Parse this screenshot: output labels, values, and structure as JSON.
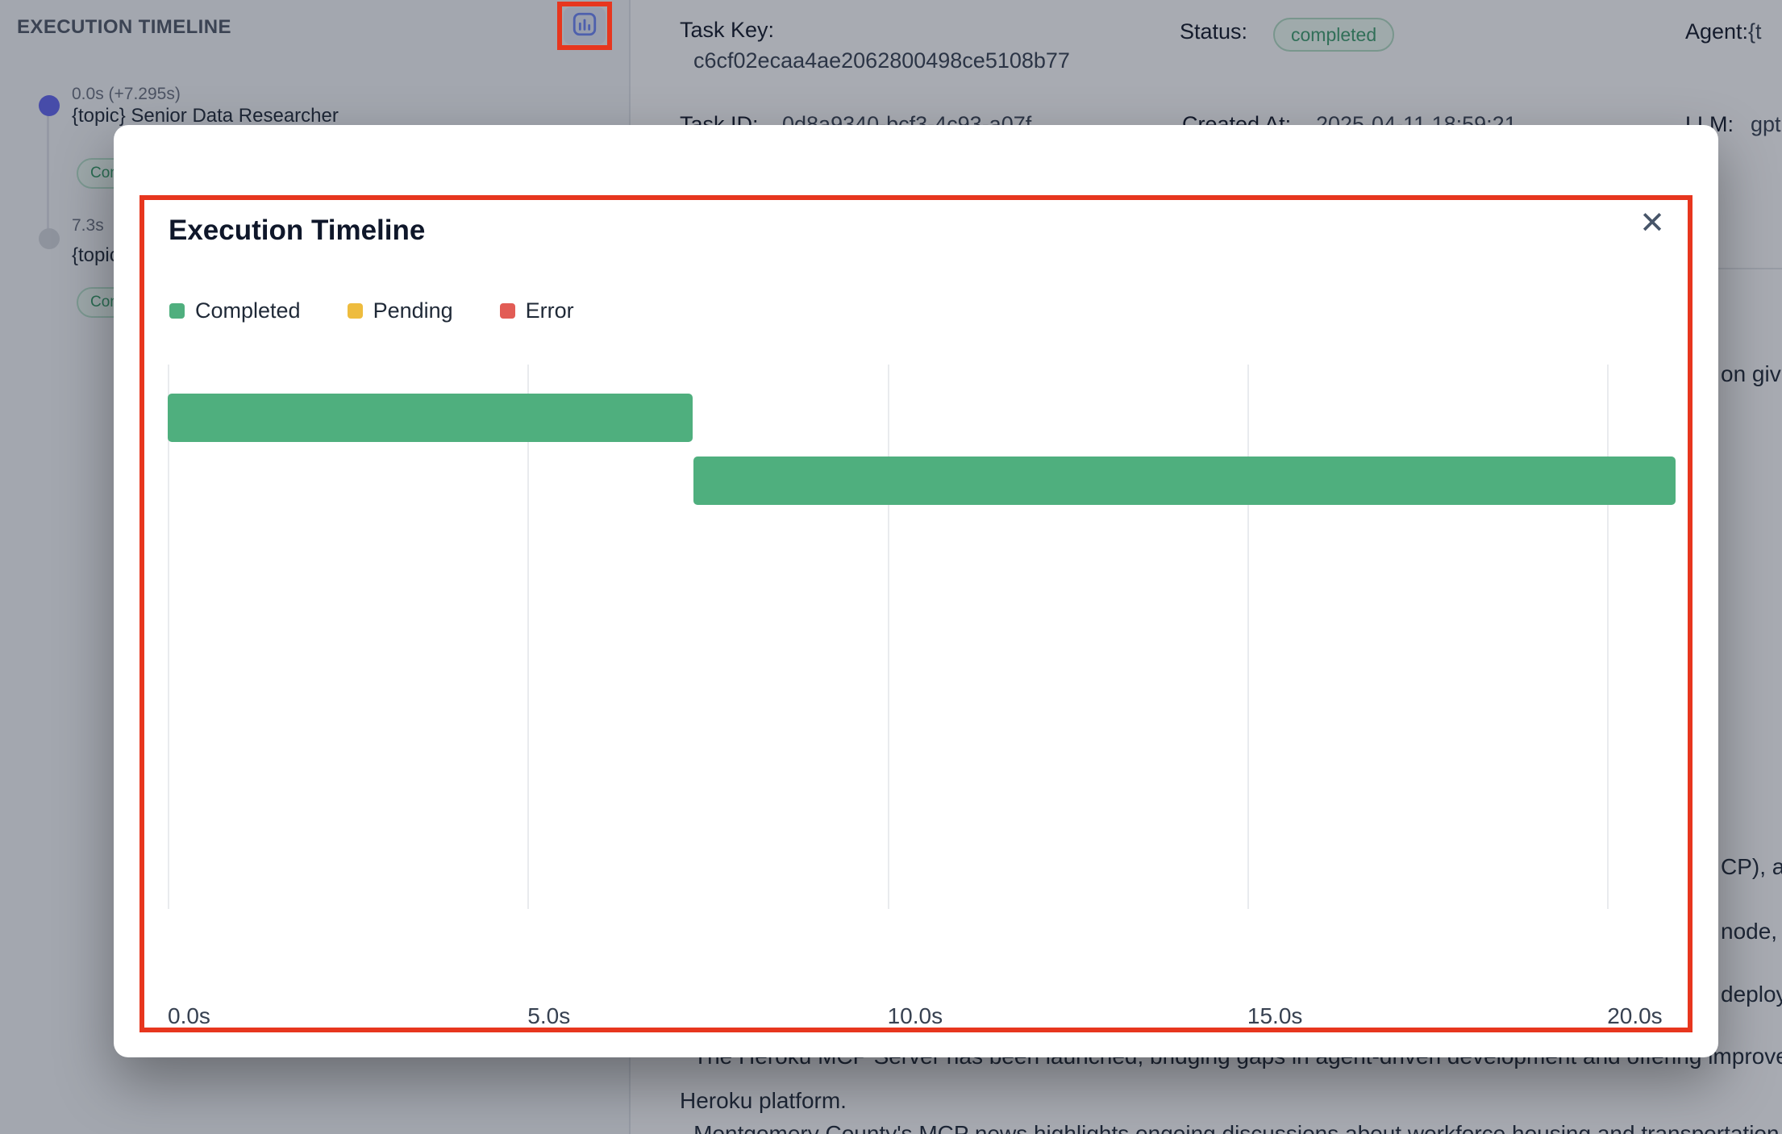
{
  "colors": {
    "annotation_red": "#e7361e",
    "completed_green": "#4faf7e",
    "pending_yellow": "#eebc3e",
    "error_red": "#e25c55"
  },
  "icons": {
    "open_chart": "bar-chart-icon",
    "close": "close-icon"
  },
  "sidebar": {
    "header": "EXECUTION TIMELINE",
    "entries": [
      {
        "time": "0.0s (+7.295s)",
        "title": "{topic} Senior Data Researcher",
        "badge": "Completed"
      },
      {
        "time": "7.3s",
        "title": "{topic}",
        "badge": "Completed"
      }
    ]
  },
  "details": {
    "task_key_label": "Task Key:",
    "task_key": "c6cf02ecaa4ae2062800498ce5108b77",
    "task_id_label": "Task ID:",
    "task_id": "0d8a9340-bcf3-4c93-a07f",
    "status_label": "Status:",
    "status": "completed",
    "created_label": "Created At:",
    "created": "2025-04-11 18:59:21",
    "agent_label": "Agent:",
    "agent": "{t",
    "llm_label": "LLM:",
    "llm": "gpt",
    "fragments": [
      "on giv",
      "CP), a",
      "node,",
      "deploy"
    ],
    "output_lines": [
      "The Heroku MCP Server has been launched, bridging gaps in agent-driven development and offering improve",
      "Heroku platform.",
      "- Montgomery County's MCP news highlights ongoing discussions about workforce housing and transportation"
    ]
  },
  "modal": {
    "title": "Execution Timeline",
    "close_icon": "✕"
  },
  "chart_data": {
    "type": "gantt",
    "title": "Execution Timeline",
    "x_unit": "s",
    "xlim": [
      0,
      20.95
    ],
    "x_ticks": [
      0,
      5,
      10,
      15,
      20
    ],
    "x_tick_labels": [
      "0.0s",
      "5.0s",
      "10.0s",
      "15.0s",
      "20.0s"
    ],
    "grid": true,
    "legend_position": "top-left",
    "legend": [
      {
        "label": "Completed",
        "color": "#4faf7e"
      },
      {
        "label": "Pending",
        "color": "#eebc3e"
      },
      {
        "label": "Error",
        "color": "#e25c55"
      }
    ],
    "colors": {
      "completed": "#4faf7e",
      "pending": "#eebc3e",
      "error": "#e25c55"
    },
    "tasks": [
      {
        "row": 0,
        "start": 0.0,
        "end": 7.295,
        "status": "completed"
      },
      {
        "row": 1,
        "start": 7.3,
        "end": 20.95,
        "status": "completed"
      }
    ]
  }
}
